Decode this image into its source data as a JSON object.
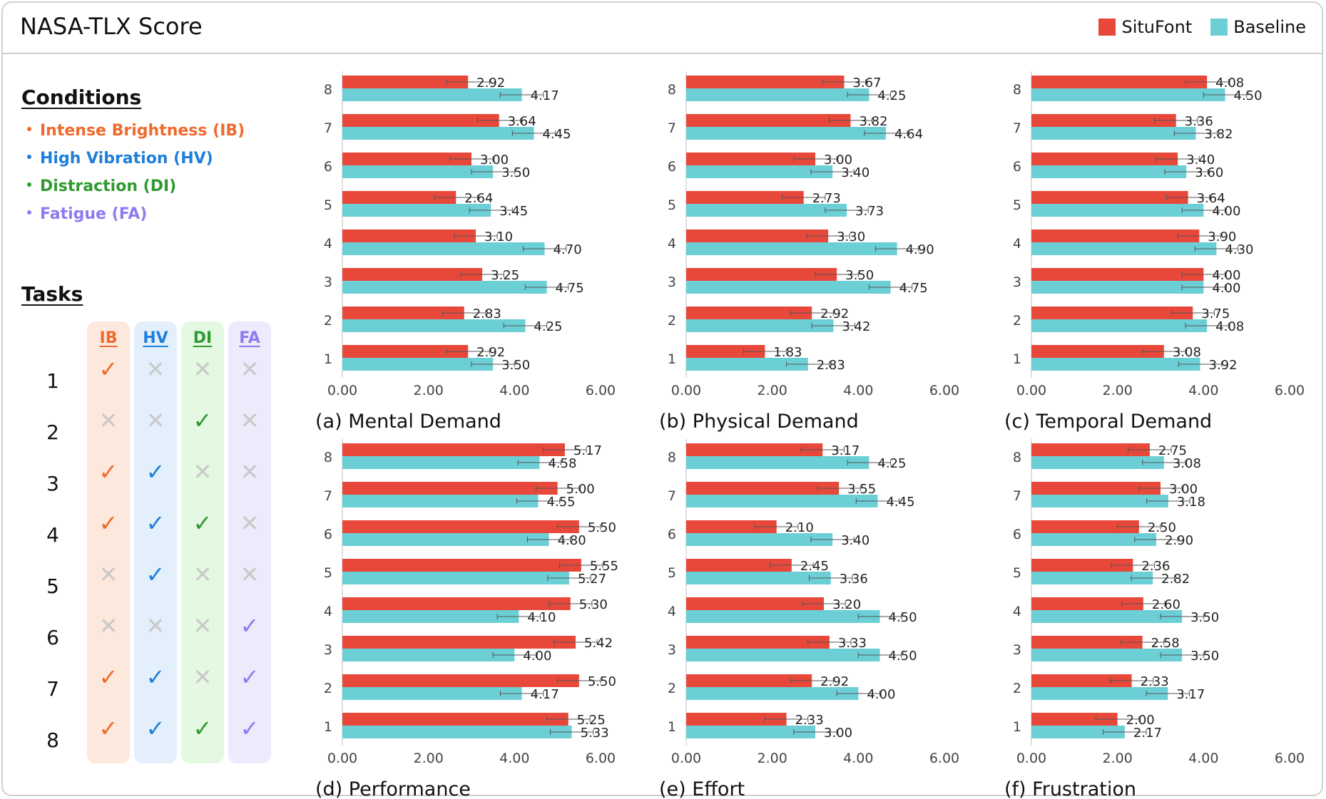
{
  "title": "NASA-TLX Score",
  "legend": {
    "situfont": "SituFont",
    "baseline": "Baseline"
  },
  "colors": {
    "situfont": "#E8483A",
    "baseline": "#6CCFD6",
    "IB": "#F06A2C",
    "HV": "#1F7FDB",
    "DI": "#2F9A2F",
    "FA": "#8B7CF0",
    "IB_bg": "#FDE8DE",
    "HV_bg": "#E3F0FC",
    "DI_bg": "#E4F8E2",
    "FA_bg": "#ECEAFB",
    "cross": "#C9C9C9"
  },
  "conditions_title": "Conditions",
  "conditions": [
    {
      "key": "IB",
      "label": "Intense Brightness (IB)"
    },
    {
      "key": "HV",
      "label": "High Vibration (HV)"
    },
    {
      "key": "DI",
      "label": "Distraction (DI)"
    },
    {
      "key": "FA",
      "label": "Fatigue (FA)"
    }
  ],
  "tasks_title": "Tasks",
  "task_columns": [
    "IB",
    "HV",
    "DI",
    "FA"
  ],
  "tasks": [
    {
      "num": "1",
      "marks": [
        true,
        false,
        false,
        false
      ]
    },
    {
      "num": "2",
      "marks": [
        false,
        false,
        true,
        false
      ]
    },
    {
      "num": "3",
      "marks": [
        true,
        true,
        false,
        false
      ]
    },
    {
      "num": "4",
      "marks": [
        true,
        true,
        true,
        false
      ]
    },
    {
      "num": "5",
      "marks": [
        false,
        true,
        false,
        false
      ]
    },
    {
      "num": "6",
      "marks": [
        false,
        false,
        false,
        true
      ]
    },
    {
      "num": "7",
      "marks": [
        true,
        true,
        false,
        true
      ]
    },
    {
      "num": "8",
      "marks": [
        true,
        true,
        true,
        true
      ]
    }
  ],
  "chart_data": [
    {
      "type": "bar",
      "title": "(a) Mental Demand",
      "categories": [
        "8",
        "7",
        "6",
        "5",
        "4",
        "3",
        "2",
        "1"
      ],
      "xlim": [
        0,
        6
      ],
      "ticks": [
        "0.00",
        "2.00",
        "4.00",
        "6.00"
      ],
      "series": [
        {
          "name": "SituFont",
          "values": [
            2.92,
            3.64,
            3.0,
            2.64,
            3.1,
            3.25,
            2.83,
            2.92
          ],
          "labels": [
            "2.92",
            "3.64",
            "3.00",
            "2.64",
            "3.10",
            "3.25",
            "2.83",
            "2.92"
          ],
          "err": [
            0.5,
            0.5,
            0.5,
            0.5,
            0.5,
            0.5,
            0.5,
            0.5
          ]
        },
        {
          "name": "Baseline",
          "values": [
            4.17,
            4.45,
            3.5,
            3.45,
            4.7,
            4.75,
            4.25,
            3.5
          ],
          "labels": [
            "4.17",
            "4.45",
            "3.50",
            "3.45",
            "4.70",
            "4.75",
            "4.25",
            "3.50"
          ],
          "err": [
            0.5,
            0.5,
            0.5,
            0.5,
            0.5,
            0.5,
            0.5,
            0.5
          ]
        }
      ]
    },
    {
      "type": "bar",
      "title": "(b) Physical Demand",
      "categories": [
        "8",
        "7",
        "6",
        "5",
        "4",
        "3",
        "2",
        "1"
      ],
      "xlim": [
        0,
        6
      ],
      "ticks": [
        "0.00",
        "2.00",
        "4.00",
        "6.00"
      ],
      "series": [
        {
          "name": "SituFont",
          "values": [
            3.67,
            3.82,
            3.0,
            2.73,
            3.3,
            3.5,
            2.92,
            1.83
          ],
          "labels": [
            "3.67",
            "3.82",
            "3.00",
            "2.73",
            "3.30",
            "3.50",
            "2.92",
            "1.83"
          ],
          "err": [
            0.5,
            0.5,
            0.5,
            0.5,
            0.5,
            0.5,
            0.5,
            0.5
          ]
        },
        {
          "name": "Baseline",
          "values": [
            4.25,
            4.64,
            3.4,
            3.73,
            4.9,
            4.75,
            3.42,
            2.83
          ],
          "labels": [
            "4.25",
            "4.64",
            "3.40",
            "3.73",
            "4.90",
            "4.75",
            "3.42",
            "2.83"
          ],
          "err": [
            0.5,
            0.5,
            0.5,
            0.5,
            0.5,
            0.5,
            0.5,
            0.5
          ]
        }
      ]
    },
    {
      "type": "bar",
      "title": "(c) Temporal Demand",
      "categories": [
        "8",
        "7",
        "6",
        "5",
        "4",
        "3",
        "2",
        "1"
      ],
      "xlim": [
        0,
        6
      ],
      "ticks": [
        "0.00",
        "2.00",
        "4.00",
        "6.00"
      ],
      "series": [
        {
          "name": "SituFont",
          "values": [
            4.08,
            3.36,
            3.4,
            3.64,
            3.9,
            4.0,
            3.75,
            3.08
          ],
          "labels": [
            "4.08",
            "3.36",
            "3.40",
            "3.64",
            "3.90",
            "4.00",
            "3.75",
            "3.08"
          ],
          "err": [
            0.5,
            0.5,
            0.5,
            0.5,
            0.5,
            0.5,
            0.5,
            0.5
          ]
        },
        {
          "name": "Baseline",
          "values": [
            4.5,
            3.82,
            3.6,
            4.0,
            4.3,
            4.0,
            4.08,
            3.92
          ],
          "labels": [
            "4.50",
            "3.82",
            "3.60",
            "4.00",
            "4.30",
            "4.00",
            "4.08",
            "3.92"
          ],
          "err": [
            0.5,
            0.5,
            0.5,
            0.5,
            0.5,
            0.5,
            0.5,
            0.5
          ]
        }
      ]
    },
    {
      "type": "bar",
      "title": "(d) Performance",
      "categories": [
        "8",
        "7",
        "6",
        "5",
        "4",
        "3",
        "2",
        "1"
      ],
      "xlim": [
        0,
        6
      ],
      "ticks": [
        "0.00",
        "2.00",
        "4.00",
        "6.00"
      ],
      "series": [
        {
          "name": "SituFont",
          "values": [
            5.17,
            5.0,
            5.5,
            5.55,
            5.3,
            5.42,
            5.5,
            5.25
          ],
          "labels": [
            "5.17",
            "5.00",
            "5.50",
            "5.55",
            "5.30",
            "5.42",
            "5.50",
            "5.25"
          ],
          "err": [
            0.5,
            0.5,
            0.5,
            0.5,
            0.5,
            0.5,
            0.5,
            0.5
          ]
        },
        {
          "name": "Baseline",
          "values": [
            4.58,
            4.55,
            4.8,
            5.27,
            4.1,
            4.0,
            4.17,
            5.33
          ],
          "labels": [
            "4.58",
            "4.55",
            "4.80",
            "5.27",
            "4.10",
            "4.00",
            "4.17",
            "5.33"
          ],
          "err": [
            0.5,
            0.5,
            0.5,
            0.5,
            0.5,
            0.5,
            0.5,
            0.5
          ]
        }
      ]
    },
    {
      "type": "bar",
      "title": "(e) Effort",
      "categories": [
        "8",
        "7",
        "6",
        "5",
        "4",
        "3",
        "2",
        "1"
      ],
      "xlim": [
        0,
        6
      ],
      "ticks": [
        "0.00",
        "2.00",
        "4.00",
        "6.00"
      ],
      "series": [
        {
          "name": "SituFont",
          "values": [
            3.17,
            3.55,
            2.1,
            2.45,
            3.2,
            3.33,
            2.92,
            2.33
          ],
          "labels": [
            "3.17",
            "3.55",
            "2.10",
            "2.45",
            "3.20",
            "3.33",
            "2.92",
            "2.33"
          ],
          "err": [
            0.5,
            0.5,
            0.5,
            0.5,
            0.5,
            0.5,
            0.5,
            0.5
          ]
        },
        {
          "name": "Baseline",
          "values": [
            4.25,
            4.45,
            3.4,
            3.36,
            4.5,
            4.5,
            4.0,
            3.0
          ],
          "labels": [
            "4.25",
            "4.45",
            "3.40",
            "3.36",
            "4.50",
            "4.50",
            "4.00",
            "3.00"
          ],
          "err": [
            0.5,
            0.5,
            0.5,
            0.5,
            0.5,
            0.5,
            0.5,
            0.5
          ]
        }
      ]
    },
    {
      "type": "bar",
      "title": "(f) Frustration",
      "categories": [
        "8",
        "7",
        "6",
        "5",
        "4",
        "3",
        "2",
        "1"
      ],
      "xlim": [
        0,
        6
      ],
      "ticks": [
        "0.00",
        "2.00",
        "4.00",
        "6.00"
      ],
      "series": [
        {
          "name": "SituFont",
          "values": [
            2.75,
            3.0,
            2.5,
            2.36,
            2.6,
            2.58,
            2.33,
            2.0
          ],
          "labels": [
            "2.75",
            "3.00",
            "2.50",
            "2.36",
            "2.60",
            "2.58",
            "2.33",
            "2.00"
          ],
          "err": [
            0.5,
            0.5,
            0.5,
            0.5,
            0.5,
            0.5,
            0.5,
            0.5
          ]
        },
        {
          "name": "Baseline",
          "values": [
            3.08,
            3.18,
            2.9,
            2.82,
            3.5,
            3.5,
            3.17,
            2.17
          ],
          "labels": [
            "3.08",
            "3.18",
            "2.90",
            "2.82",
            "3.50",
            "3.50",
            "3.17",
            "2.17"
          ],
          "err": [
            0.5,
            0.5,
            0.5,
            0.5,
            0.5,
            0.5,
            0.5,
            0.5
          ]
        }
      ]
    }
  ]
}
